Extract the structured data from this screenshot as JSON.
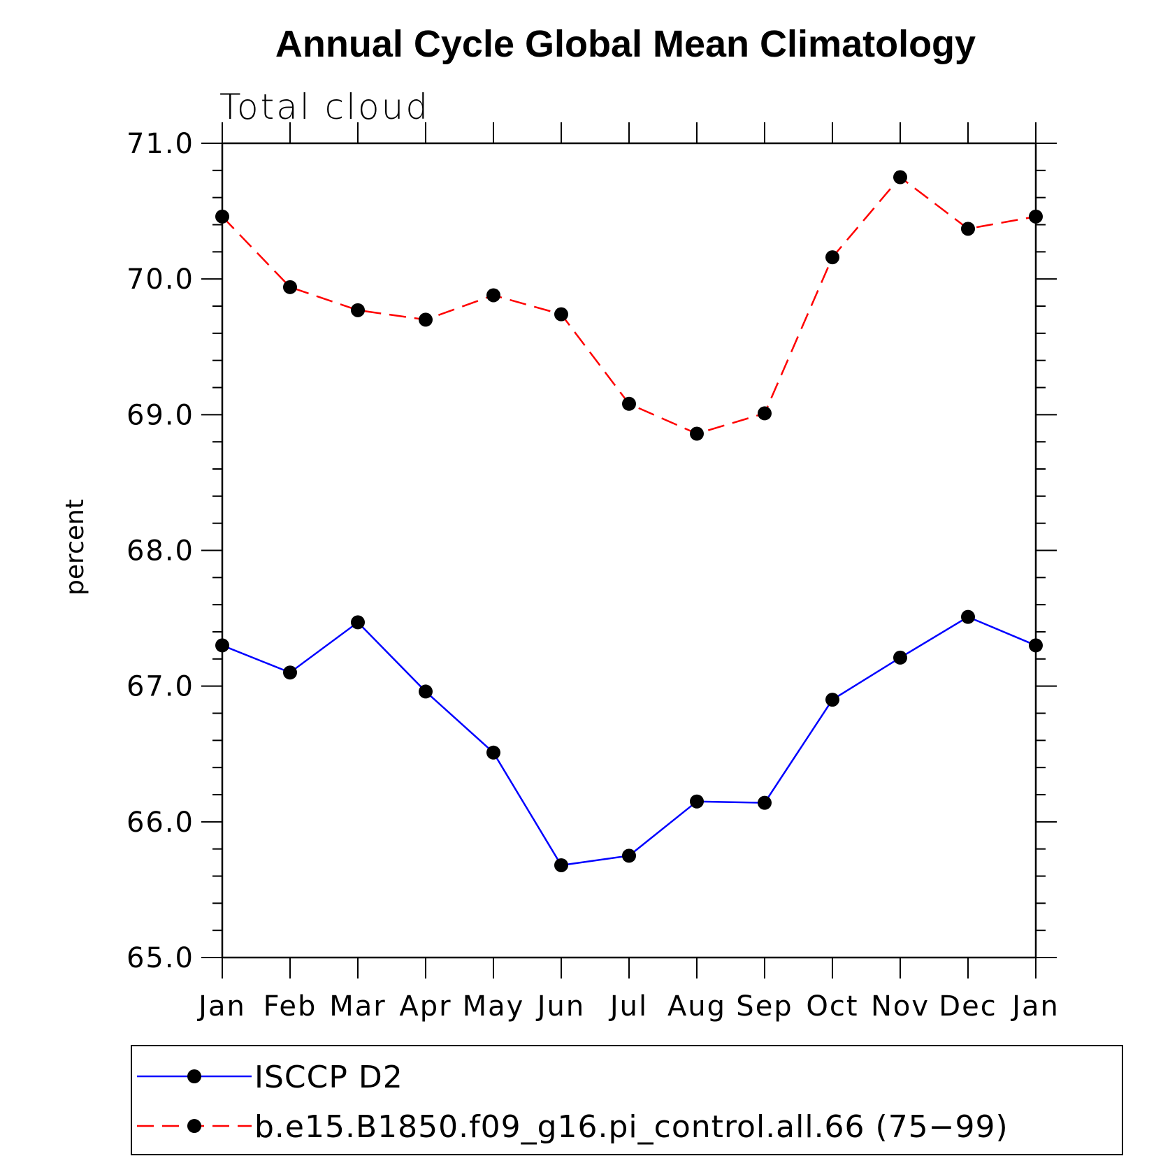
{
  "chart_data": {
    "type": "line",
    "title": "Annual Cycle Global Mean Climatology",
    "subtitle": "Total cloud",
    "xlabel": "",
    "ylabel": "percent",
    "ylim": [
      65.0,
      71.0
    ],
    "yticks": [
      "65.0",
      "66.0",
      "67.0",
      "68.0",
      "69.0",
      "70.0",
      "71.0"
    ],
    "categories": [
      "Jan",
      "Feb",
      "Mar",
      "Apr",
      "May",
      "Jun",
      "Jul",
      "Aug",
      "Sep",
      "Oct",
      "Nov",
      "Dec",
      "Jan"
    ],
    "grid": false,
    "legend_position": "bottom",
    "series": [
      {
        "name": "ISCCP D2",
        "color": "#0000ff",
        "dash": "solid",
        "values": [
          67.3,
          67.1,
          67.47,
          66.96,
          66.51,
          65.68,
          65.75,
          66.15,
          66.14,
          66.9,
          67.21,
          67.51,
          67.3
        ]
      },
      {
        "name": "b.e15.B1850.f09_g16.pi_control.all.66 (75−99)",
        "color": "#ff0000",
        "dash": "dashed",
        "values": [
          70.46,
          69.94,
          69.77,
          69.7,
          69.88,
          69.74,
          69.08,
          68.86,
          69.01,
          70.16,
          70.75,
          70.37,
          70.46
        ]
      }
    ]
  }
}
